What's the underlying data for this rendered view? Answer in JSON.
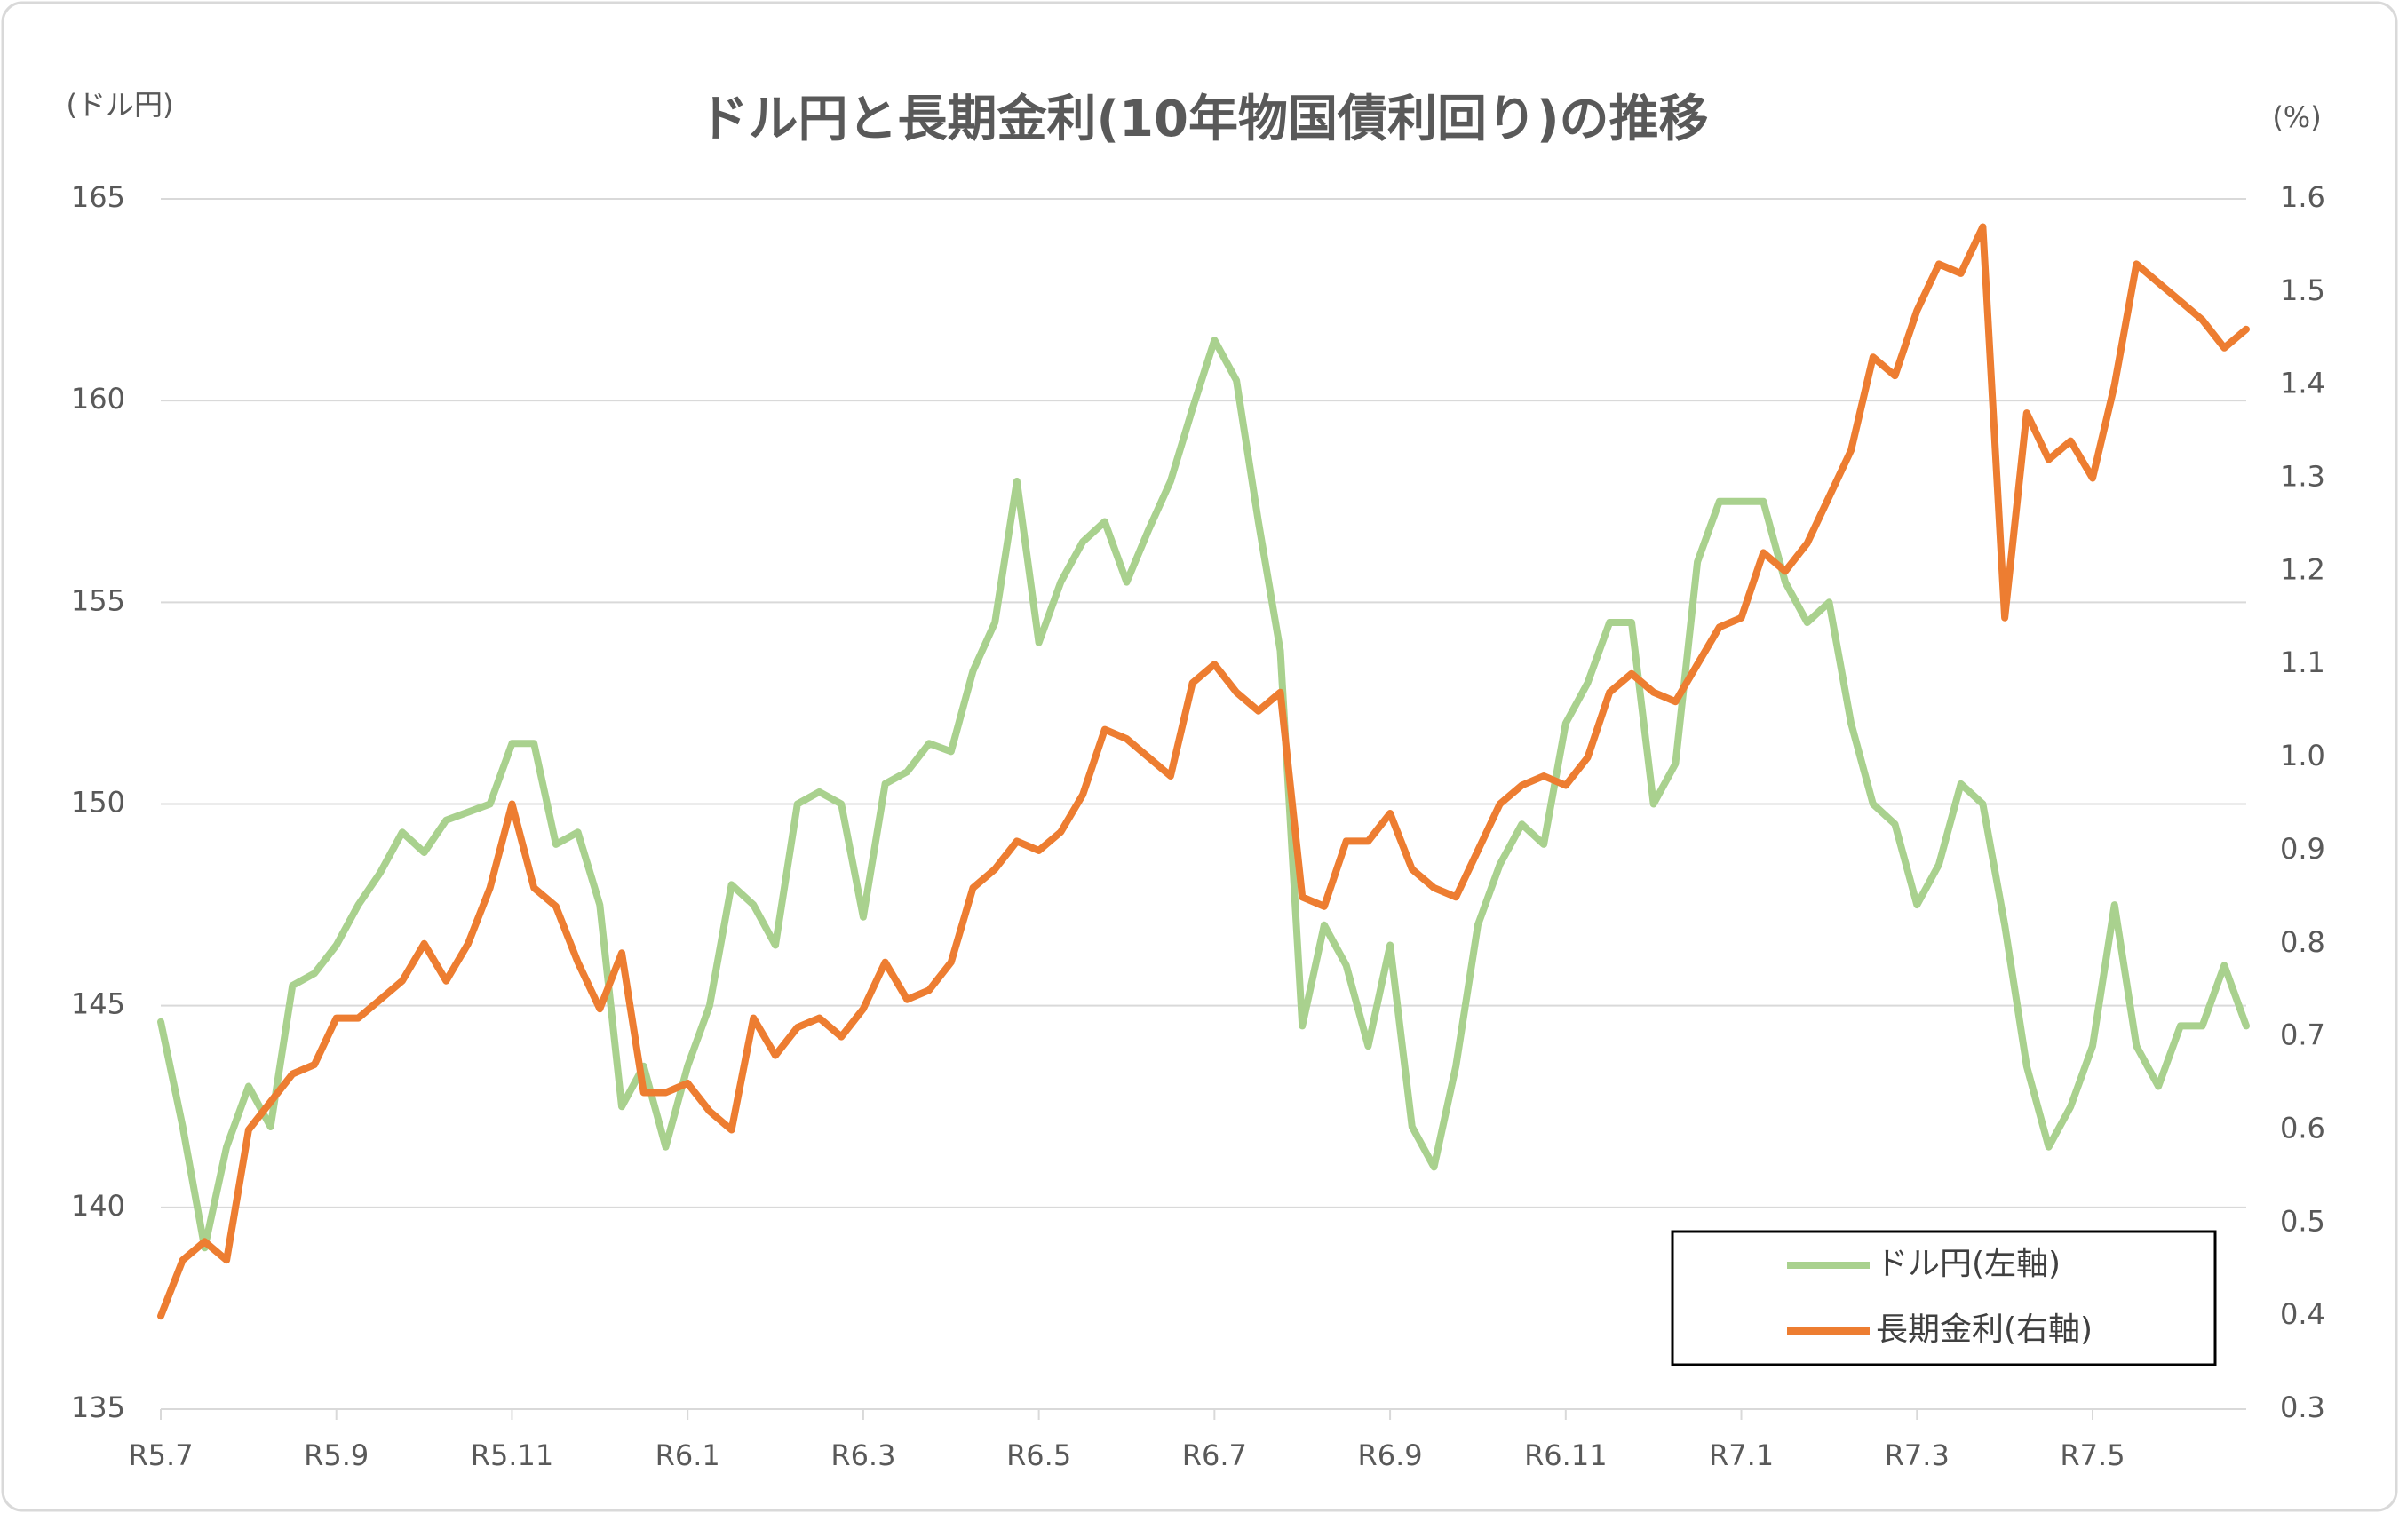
{
  "chart_data": {
    "type": "line",
    "title": "ドル円と長期金利(10年物国債利回り)の推移",
    "y_label": "(ドル円)",
    "y2_label": "(%)",
    "categories": [
      "R5.7",
      null,
      null,
      null,
      null,
      null,
      null,
      null,
      "R5.9",
      null,
      null,
      null,
      null,
      null,
      null,
      null,
      "R5.11",
      null,
      null,
      null,
      null,
      null,
      null,
      null,
      "R6.1",
      null,
      null,
      null,
      null,
      null,
      null,
      null,
      "R6.3",
      null,
      null,
      null,
      null,
      null,
      null,
      null,
      "R6.5",
      null,
      null,
      null,
      null,
      null,
      null,
      null,
      "R6.7",
      null,
      null,
      null,
      null,
      null,
      null,
      null,
      "R6.9",
      null,
      null,
      null,
      null,
      null,
      null,
      null,
      "R6.11",
      null,
      null,
      null,
      null,
      null,
      null,
      null,
      "R7.1",
      null,
      null,
      null,
      null,
      null,
      null,
      null,
      "R7.3",
      null,
      null,
      null,
      null,
      null,
      null,
      null,
      "R7.5",
      null,
      null,
      null,
      null,
      null,
      null,
      null
    ],
    "series": [
      {
        "name": "ドル円(左軸)",
        "color": "#a9d18e",
        "axis": "y",
        "values": [
          144.6,
          142,
          139,
          141.5,
          143,
          142,
          145.5,
          145.8,
          146.5,
          147.5,
          148.3,
          149.3,
          148.8,
          149.6,
          149.8,
          150,
          151.5,
          151.5,
          149,
          149.3,
          147.5,
          142.5,
          143.5,
          141.5,
          143.5,
          145,
          148,
          147.5,
          146.5,
          150,
          150.3,
          150,
          147.2,
          150.5,
          150.8,
          151.5,
          151.3,
          153.3,
          154.5,
          158,
          154,
          155.5,
          156.5,
          157,
          155.5,
          156.8,
          158,
          159.8,
          161.5,
          160.5,
          157,
          153.8,
          144.5,
          147,
          146,
          144,
          146.5,
          142,
          141,
          143.5,
          147,
          148.5,
          149.5,
          149,
          152,
          153,
          154.5,
          154.5,
          150,
          151,
          156,
          157.5,
          157.5,
          157.5,
          155.5,
          154.5,
          155,
          152,
          150,
          149.5,
          147.5,
          148.5,
          150.5,
          150,
          147,
          143.5,
          141.5,
          142.5,
          144,
          147.5,
          144,
          143,
          144.5,
          144.5,
          146,
          144.5
        ]
      },
      {
        "name": "長期金利(右軸)",
        "color": "#ed7d31",
        "axis": "y2",
        "values": [
          0.4,
          0.46,
          0.48,
          0.46,
          0.6,
          0.63,
          0.66,
          0.67,
          0.72,
          0.72,
          0.74,
          0.76,
          0.8,
          0.76,
          0.8,
          0.86,
          0.95,
          0.86,
          0.84,
          0.78,
          0.73,
          0.79,
          0.64,
          0.64,
          0.65,
          0.62,
          0.6,
          0.72,
          0.68,
          0.71,
          0.72,
          0.7,
          0.73,
          0.78,
          0.74,
          0.75,
          0.78,
          0.86,
          0.88,
          0.91,
          0.9,
          0.92,
          0.96,
          1.03,
          1.02,
          1,
          0.98,
          1.08,
          1.1,
          1.07,
          1.05,
          1.07,
          0.85,
          0.84,
          0.91,
          0.91,
          0.94,
          0.88,
          0.86,
          0.85,
          0.9,
          0.95,
          0.97,
          0.98,
          0.97,
          1,
          1.07,
          1.09,
          1.07,
          1.06,
          1.1,
          1.14,
          1.15,
          1.22,
          1.2,
          1.23,
          1.28,
          1.33,
          1.43,
          1.41,
          1.48,
          1.53,
          1.52,
          1.57,
          1.15,
          1.37,
          1.32,
          1.34,
          1.3,
          1.4,
          1.53,
          1.51,
          1.49,
          1.47,
          1.44,
          1.46
        ]
      }
    ],
    "ylim": [
      135,
      165
    ],
    "yticks": [
      135,
      140,
      145,
      150,
      155,
      160,
      165
    ],
    "y2lim": [
      0.3,
      1.6
    ],
    "y2ticks": [
      0.3,
      0.4,
      0.5,
      0.6,
      0.7,
      0.8,
      0.9,
      {
        "value": 1,
        "label": "1.0"
      },
      1.1,
      1.2,
      1.3,
      1.4,
      1.5,
      1.6
    ],
    "grid": true,
    "legend": "lower right"
  }
}
